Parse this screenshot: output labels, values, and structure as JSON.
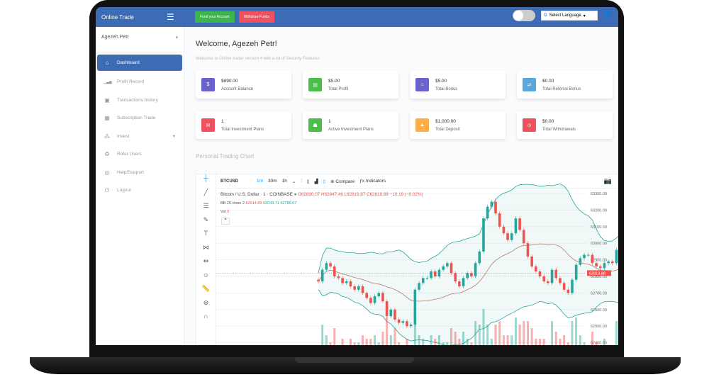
{
  "topbar": {
    "brand": "Online Trade",
    "fund_label": "Fund your Account",
    "withdraw_label": "Withdraw Funds",
    "language_label": "Select Language",
    "colors": {
      "bar": "#3d6cb5",
      "fund": "#3cb54a",
      "withdraw": "#f0515e"
    }
  },
  "sidebar": {
    "user": "Agezeh Petr",
    "items": [
      {
        "label": "Dashboard",
        "icon": "home-icon",
        "active": true
      },
      {
        "label": "Profit Record",
        "icon": "signal-icon"
      },
      {
        "label": "Transactions history",
        "icon": "briefcase-icon"
      },
      {
        "label": "Subscription Trade",
        "icon": "grid-icon"
      },
      {
        "label": "Invest",
        "icon": "cubes-icon",
        "has_dropdown": true
      },
      {
        "label": "Refer Users",
        "icon": "recycle-icon"
      },
      {
        "label": "Help/Support",
        "icon": "lifebuoy-icon"
      },
      {
        "label": "Logout",
        "icon": "power-icon"
      }
    ]
  },
  "main": {
    "welcome": "Welcome, Agezeh Petr!",
    "subtitle": "Welcome to Online trader version 4 with a lot of Security Features",
    "chart_title": "Personal Trading Chart",
    "cards": [
      {
        "value": "$890.00",
        "label": "Account Balance",
        "icon": "$",
        "color": "#6861ce"
      },
      {
        "value": "$5.00",
        "label": "Total Profit",
        "icon": "▤",
        "color": "#48c048"
      },
      {
        "value": "$5.00",
        "label": "Total Bonus",
        "icon": "⌂",
        "color": "#6861ce"
      },
      {
        "value": "$0.00",
        "label": "Total Referral Bonus",
        "icon": "⇄",
        "color": "#58a8dd"
      },
      {
        "value": "1",
        "label": "Total Investment Plans",
        "icon": "✉",
        "color": "#f0515e"
      },
      {
        "value": "1",
        "label": "Active Investment Plans",
        "icon": "☗",
        "color": "#48c048"
      },
      {
        "value": "$1,000.00",
        "label": "Total Deposit",
        "icon": "▲",
        "color": "#ffad46"
      },
      {
        "value": "$0.00",
        "label": "Total Withdrawals",
        "icon": "⊙",
        "color": "#f0515e"
      }
    ]
  },
  "chart": {
    "symbol": "BTCUSD",
    "intervals": [
      "1m",
      "30m",
      "1h"
    ],
    "compare": "Compare",
    "indicators": "Indicators",
    "title": "Bitcoin / U.S. Dollar · 1 · COINBASE",
    "ohlc": "O62830.07 H62847.46 L62819.87 C62819.88 −10.19 (−0.02%)",
    "bb_label": "BB 20 close 2",
    "bb_mid": "62914.89",
    "bb_up": "63043.71",
    "bb_low": "62786.07",
    "vol_label": "Vol",
    "vol_value": "0",
    "last_price": "62819.88",
    "price_ticks": [
      "63300.00",
      "63200.00",
      "63100.00",
      "63000.00",
      "62900.00",
      "62800.00",
      "62700.00",
      "62600.00",
      "62500.00",
      "62400.00"
    ],
    "closes": [
      62770,
      62840,
      62880,
      62860,
      62800,
      62790,
      62760,
      62770,
      62740,
      62720,
      62740,
      62700,
      62670,
      62640,
      62680,
      62700,
      62650,
      62560,
      62600,
      62540,
      62520,
      62530,
      62500,
      62510,
      62720,
      62760,
      62790,
      62790,
      62830,
      62800,
      62840,
      62860,
      62880,
      62820,
      62770,
      62740,
      62790,
      62820,
      62800,
      62880,
      62950,
      63150,
      63220,
      63250,
      63180,
      63100,
      63060,
      63020,
      63060,
      63150,
      63080,
      63000,
      62920,
      62860,
      62830,
      62800,
      62770,
      62760,
      62840,
      62790,
      62760,
      62720,
      62700,
      62780,
      62870,
      62910,
      62930,
      62930,
      62880,
      62860,
      62850,
      62880,
      62890,
      62880,
      62960,
      63000,
      62990,
      62970,
      62980,
      62960,
      62850,
      62810,
      62880,
      62880,
      62820,
      62810
    ],
    "colors": {
      "up": "#26a69a",
      "down": "#ef5350",
      "band": "#26a69a",
      "basis": "#b57a6c"
    }
  }
}
